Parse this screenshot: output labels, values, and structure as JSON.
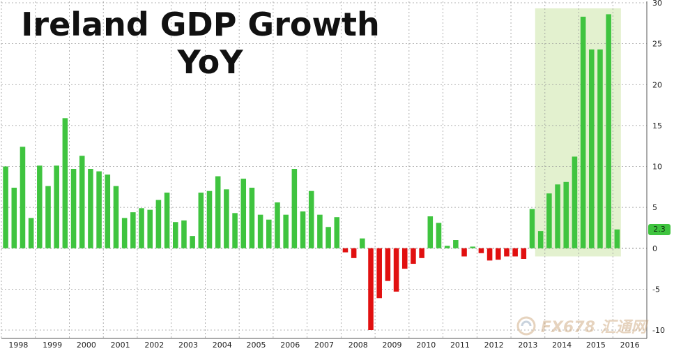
{
  "title_line1": "Ireland GDP Growth",
  "title_line2": "YoY",
  "watermark": {
    "logo_icon": "fx678-swirl-logo",
    "text": "FX678 汇通网"
  },
  "colors": {
    "positive": "#3fc43f",
    "negative": "#e11010",
    "highlight": "#e3f1cf",
    "grid": "#9a9a9a"
  },
  "chart_data": {
    "type": "bar",
    "title": "Ireland GDP Growth YoY",
    "xlabel": "",
    "ylabel": "",
    "ylim": [
      -10,
      30
    ],
    "yticks": [
      -10,
      -5,
      0,
      5,
      10,
      15,
      20,
      25,
      30
    ],
    "grid": true,
    "y_axis_side": "right",
    "years": [
      "1998",
      "1999",
      "2000",
      "2001",
      "2002",
      "2003",
      "2004",
      "2005",
      "2006",
      "2007",
      "2008",
      "2009",
      "2010",
      "2011",
      "2012",
      "2013",
      "2014",
      "2015",
      "2016"
    ],
    "highlight_period": [
      "2013 Q4",
      "2016 Q1"
    ],
    "last_value_label": "2.3",
    "categories": [
      "1998 Q1",
      "1998 Q2",
      "1998 Q3",
      "1998 Q4",
      "1999 Q1",
      "1999 Q2",
      "1999 Q3",
      "1999 Q4",
      "2000 Q1",
      "2000 Q2",
      "2000 Q3",
      "2000 Q4",
      "2001 Q1",
      "2001 Q2",
      "2001 Q3",
      "2001 Q4",
      "2002 Q1",
      "2002 Q2",
      "2002 Q3",
      "2002 Q4",
      "2003 Q1",
      "2003 Q2",
      "2003 Q3",
      "2003 Q4",
      "2004 Q1",
      "2004 Q2",
      "2004 Q3",
      "2004 Q4",
      "2005 Q1",
      "2005 Q2",
      "2005 Q3",
      "2005 Q4",
      "2006 Q1",
      "2006 Q2",
      "2006 Q3",
      "2006 Q4",
      "2007 Q1",
      "2007 Q2",
      "2007 Q3",
      "2007 Q4",
      "2008 Q1",
      "2008 Q2",
      "2008 Q3",
      "2008 Q4",
      "2009 Q1",
      "2009 Q2",
      "2009 Q3",
      "2009 Q4",
      "2010 Q1",
      "2010 Q2",
      "2010 Q3",
      "2010 Q4",
      "2011 Q1",
      "2011 Q2",
      "2011 Q3",
      "2011 Q4",
      "2012 Q1",
      "2012 Q2",
      "2012 Q3",
      "2012 Q4",
      "2013 Q1",
      "2013 Q2",
      "2013 Q3",
      "2013 Q4",
      "2014 Q1",
      "2014 Q2",
      "2014 Q3",
      "2014 Q4",
      "2015 Q1",
      "2015 Q2",
      "2015 Q3",
      "2015 Q4",
      "2016 Q1"
    ],
    "values": [
      10.0,
      7.4,
      12.4,
      3.7,
      10.1,
      7.6,
      10.1,
      15.9,
      9.7,
      11.3,
      9.7,
      9.4,
      9.0,
      7.6,
      3.7,
      4.4,
      4.9,
      4.7,
      5.9,
      6.8,
      3.2,
      3.4,
      1.5,
      6.8,
      7.0,
      8.8,
      7.2,
      4.3,
      8.5,
      7.4,
      4.1,
      3.5,
      5.6,
      4.1,
      9.7,
      4.5,
      7.0,
      4.1,
      2.6,
      3.8,
      -0.5,
      -1.2,
      1.2,
      -10.0,
      -6.1,
      -4.0,
      -5.3,
      -2.5,
      -1.9,
      -1.2,
      3.9,
      3.1,
      0.3,
      1.0,
      -1.0,
      0.2,
      -0.6,
      -1.5,
      -1.4,
      -1.0,
      -1.0,
      -1.3,
      4.8,
      2.1,
      6.7,
      7.8,
      8.1,
      11.2,
      28.3,
      24.3,
      24.3,
      28.6,
      2.3
    ]
  }
}
